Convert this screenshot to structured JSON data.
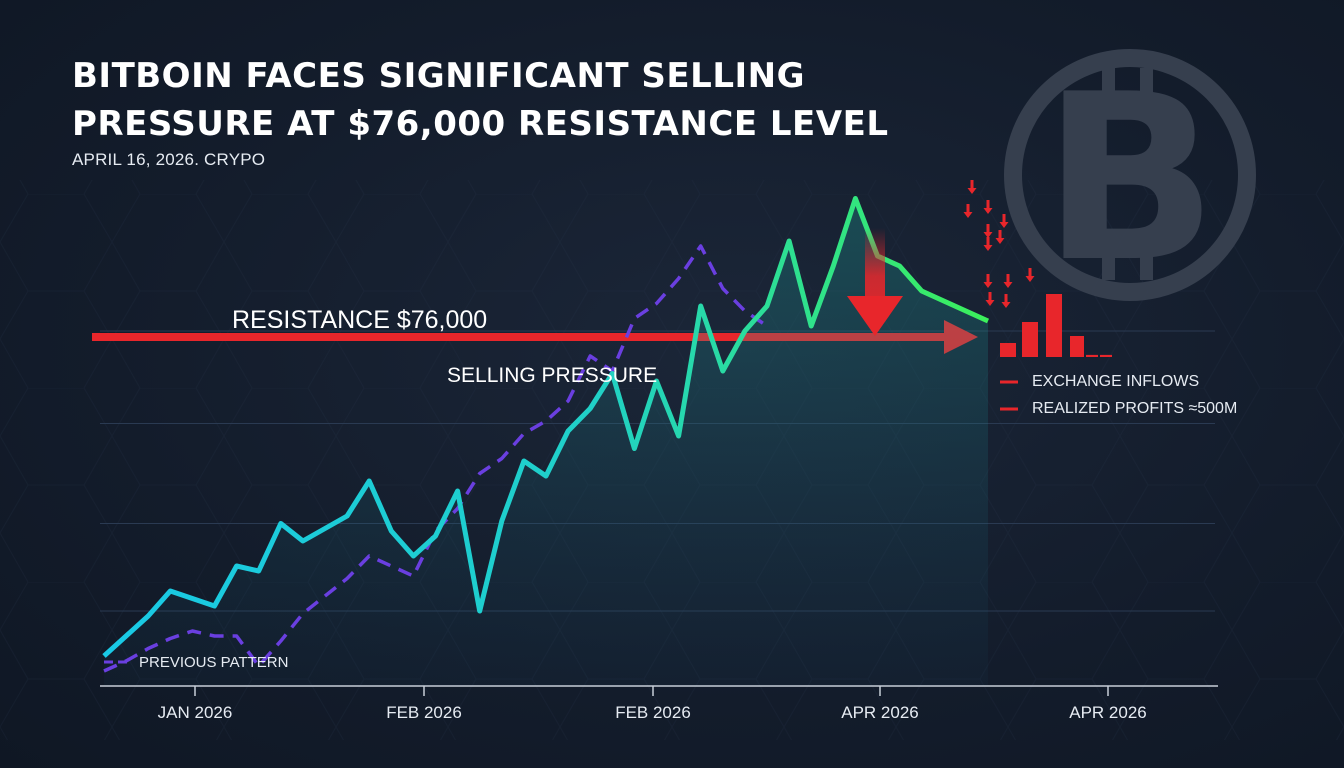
{
  "header": {
    "headline_line1": "BITBOIN FACES SIGNIFICANT SELLING",
    "headline_line2": "PRESSURE AT $76,000 RESISTANCE LEVEL",
    "dateline": "APRIL 16, 2026. CRYPO"
  },
  "colors": {
    "background": "#131c2b",
    "price_line_start": "#19c9e6",
    "price_line_end": "#3cf05a",
    "previous_pattern": "#6a3fe0",
    "resistance": "#e8262b",
    "axis": "#c7ced8",
    "logo": "#3a4352"
  },
  "icons": {
    "logo": "bitcoin-icon"
  },
  "chart_data": {
    "type": "line",
    "title": "",
    "x_tick_labels": [
      "JAN 2026",
      "FEB 2026",
      "FEB 2026",
      "APR 2026",
      "APR 2026"
    ],
    "y_range": [
      61000,
      81000
    ],
    "grid": true,
    "series": [
      {
        "name": "",
        "x": [
          0,
          1,
          2,
          3,
          4,
          5,
          6,
          7,
          8,
          9,
          10,
          11,
          12,
          13,
          14,
          15,
          16,
          17,
          18,
          19,
          20,
          21,
          22,
          23,
          24,
          25,
          26,
          27,
          28,
          29,
          30,
          31,
          32,
          33,
          34,
          35,
          36,
          37,
          38,
          39,
          40
        ],
        "y": [
          62200,
          63000,
          63800,
          64800,
          64500,
          64200,
          65800,
          65600,
          67500,
          66800,
          67300,
          67800,
          69200,
          67200,
          66200,
          67000,
          68800,
          64000,
          67600,
          70000,
          69400,
          71200,
          72100,
          73500,
          70500,
          73200,
          71000,
          76200,
          73600,
          75200,
          76200,
          78800,
          75400,
          77800,
          80500,
          78200,
          77800,
          76800,
          76400,
          76000,
          75600
        ],
        "color": "gradient"
      },
      {
        "name": "PREVIOUS PATTERN",
        "x": [
          0,
          1,
          2,
          3,
          4,
          5,
          6,
          7,
          8,
          9,
          10,
          11,
          12,
          13,
          14,
          15,
          16,
          17,
          18,
          19,
          20,
          21,
          22,
          23,
          24,
          25,
          26,
          27,
          28,
          29,
          30
        ],
        "y": [
          61600,
          62000,
          62500,
          62900,
          63200,
          63000,
          63000,
          61800,
          62800,
          63900,
          64600,
          65300,
          66200,
          65800,
          65400,
          67200,
          68100,
          69500,
          70100,
          71100,
          71600,
          72400,
          74200,
          73600,
          75700,
          76300,
          77300,
          78600,
          76900,
          76000,
          75400
        ],
        "color": "#6a3fe0",
        "style": "dashed"
      }
    ],
    "annotations": {
      "resistance_label": "RESISTANCE $76,000",
      "resistance_value": 76000,
      "selling_pressure_label": "SELLING PRESSURE",
      "legend_exchange_inflows": "EXCHANGE INFLOWS",
      "legend_realized_profits": "REALIZED PROFITS ≈500M",
      "legend_previous_pattern": "PREVIOUS PATTERN",
      "sell_bars": [
        2,
        5,
        9,
        3,
        0.3,
        0.3
      ]
    }
  }
}
